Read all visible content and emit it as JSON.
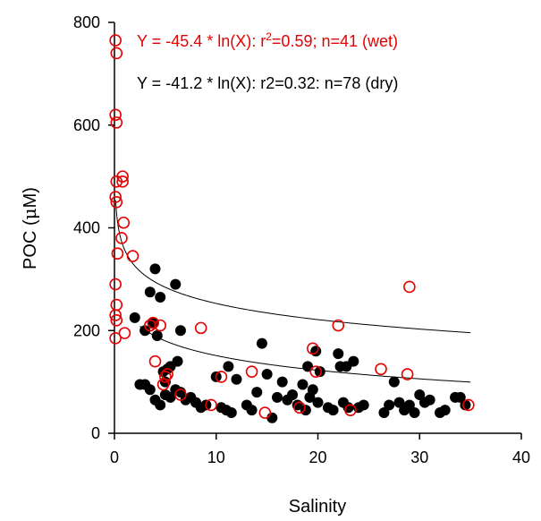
{
  "chart_data": {
    "type": "scatter",
    "xlabel": "Salinity",
    "ylabel_prefix": "POC (",
    "ylabel_unit_symbol": "μ",
    "ylabel_unit_rest": "M)",
    "xlim": [
      0,
      40
    ],
    "ylim": [
      0,
      800
    ],
    "x_ticks": [
      0,
      10,
      20,
      30,
      40
    ],
    "y_ticks": [
      0,
      200,
      400,
      600,
      800
    ],
    "grid": false,
    "legend_position": "top-right",
    "annotations": {
      "wet": {
        "before": "Y = -45.4 * ln(X): r",
        "sup": "2",
        "after": "=0.59; n=41 (wet)",
        "color": "#e60000"
      },
      "dry": {
        "text": "Y = -41.2 * ln(X): r2=0.32: n=78 (dry)",
        "color": "#000000"
      }
    },
    "series": [
      {
        "key": "dry",
        "marker": "filled-circle",
        "color": "#000000",
        "points": [
          [
            2.0,
            225
          ],
          [
            2.5,
            95
          ],
          [
            3.0,
            200
          ],
          [
            3.0,
            95
          ],
          [
            3.5,
            275
          ],
          [
            3.5,
            85
          ],
          [
            3.8,
            215
          ],
          [
            4.0,
            320
          ],
          [
            4.0,
            65
          ],
          [
            4.2,
            190
          ],
          [
            4.5,
            265
          ],
          [
            4.5,
            55
          ],
          [
            4.8,
            120
          ],
          [
            5.0,
            100
          ],
          [
            5.0,
            75
          ],
          [
            5.2,
            125
          ],
          [
            5.5,
            130
          ],
          [
            5.5,
            70
          ],
          [
            6.0,
            290
          ],
          [
            6.0,
            85
          ],
          [
            6.2,
            140
          ],
          [
            6.5,
            200
          ],
          [
            6.5,
            80
          ],
          [
            7.0,
            65
          ],
          [
            7.5,
            70
          ],
          [
            8.0,
            60
          ],
          [
            8.5,
            50
          ],
          [
            9.0,
            55
          ],
          [
            10.0,
            110
          ],
          [
            10.5,
            50
          ],
          [
            11.0,
            45
          ],
          [
            11.2,
            130
          ],
          [
            11.5,
            40
          ],
          [
            12.0,
            105
          ],
          [
            13.0,
            55
          ],
          [
            13.5,
            45
          ],
          [
            14.0,
            80
          ],
          [
            14.5,
            175
          ],
          [
            15.0,
            115
          ],
          [
            15.5,
            30
          ],
          [
            16.0,
            70
          ],
          [
            16.5,
            100
          ],
          [
            17.0,
            65
          ],
          [
            17.5,
            75
          ],
          [
            18.0,
            55
          ],
          [
            18.5,
            95
          ],
          [
            18.8,
            45
          ],
          [
            19.0,
            130
          ],
          [
            19.2,
            70
          ],
          [
            19.5,
            85
          ],
          [
            19.8,
            160
          ],
          [
            20.0,
            60
          ],
          [
            20.2,
            120
          ],
          [
            21.0,
            50
          ],
          [
            21.5,
            45
          ],
          [
            22.0,
            155
          ],
          [
            22.2,
            130
          ],
          [
            22.5,
            60
          ],
          [
            22.8,
            130
          ],
          [
            23.0,
            50
          ],
          [
            23.5,
            140
          ],
          [
            24.0,
            50
          ],
          [
            24.5,
            55
          ],
          [
            26.5,
            40
          ],
          [
            27.0,
            55
          ],
          [
            27.5,
            100
          ],
          [
            28.0,
            60
          ],
          [
            28.5,
            45
          ],
          [
            29.0,
            55
          ],
          [
            29.5,
            40
          ],
          [
            30.0,
            75
          ],
          [
            30.5,
            60
          ],
          [
            31.0,
            65
          ],
          [
            32.0,
            40
          ],
          [
            32.5,
            45
          ],
          [
            33.5,
            70
          ],
          [
            34.0,
            70
          ],
          [
            34.5,
            55
          ]
        ]
      },
      {
        "key": "wet",
        "marker": "open-circle",
        "color": "#e60000",
        "points": [
          [
            0.1,
            765
          ],
          [
            0.2,
            740
          ],
          [
            0.1,
            620
          ],
          [
            0.2,
            605
          ],
          [
            0.8,
            500
          ],
          [
            0.8,
            490
          ],
          [
            0.2,
            490
          ],
          [
            0.1,
            460
          ],
          [
            0.2,
            450
          ],
          [
            0.9,
            410
          ],
          [
            0.7,
            380
          ],
          [
            0.3,
            350
          ],
          [
            1.8,
            345
          ],
          [
            0.1,
            290
          ],
          [
            0.2,
            250
          ],
          [
            0.1,
            230
          ],
          [
            0.2,
            220
          ],
          [
            0.1,
            185
          ],
          [
            1.0,
            195
          ],
          [
            3.8,
            215
          ],
          [
            4.5,
            210
          ],
          [
            3.5,
            210
          ],
          [
            8.5,
            205
          ],
          [
            4.0,
            140
          ],
          [
            10.5,
            110
          ],
          [
            5.0,
            110
          ],
          [
            5.2,
            115
          ],
          [
            4.8,
            95
          ],
          [
            6.5,
            75
          ],
          [
            9.5,
            55
          ],
          [
            13.5,
            120
          ],
          [
            14.8,
            40
          ],
          [
            18.2,
            50
          ],
          [
            19.5,
            165
          ],
          [
            19.8,
            120
          ],
          [
            22.0,
            210
          ],
          [
            23.2,
            45
          ],
          [
            26.2,
            125
          ],
          [
            29.0,
            285
          ],
          [
            28.8,
            115
          ],
          [
            34.8,
            55
          ]
        ]
      }
    ],
    "fit_curves": [
      {
        "key": "wet",
        "a": 357.3,
        "b": -45.4,
        "x_from": 0.12,
        "x_to": 35
      },
      {
        "key": "dry",
        "a": 246.1,
        "b": -41.2,
        "x_from": 2.5,
        "x_to": 35
      }
    ]
  }
}
